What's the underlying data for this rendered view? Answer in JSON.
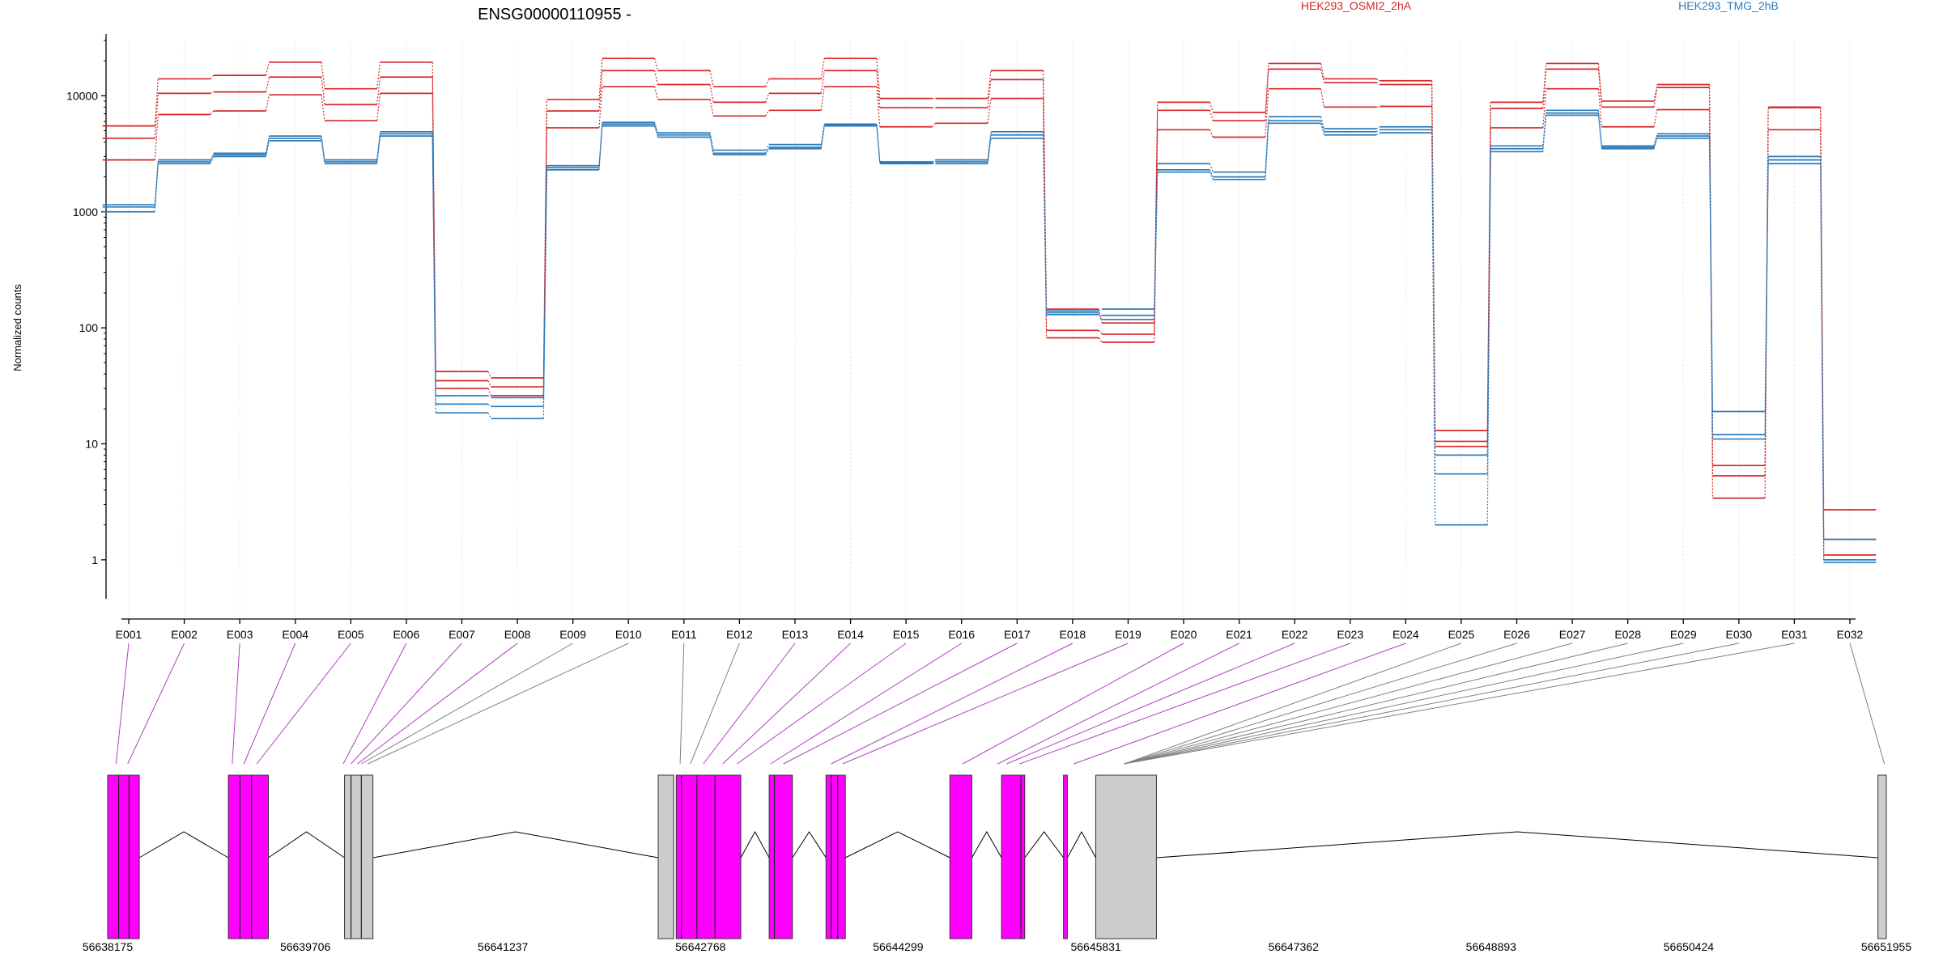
{
  "chart_data": {
    "type": "line",
    "title": "ENSG00000110955 -",
    "ylabel": "Normalized counts",
    "xlabel": "",
    "y_scale": "log",
    "ylim": [
      0.5,
      30000
    ],
    "y_ticks": [
      1,
      10,
      100,
      1000,
      10000
    ],
    "y_tick_labels": [
      "1",
      "10",
      "100",
      "1000",
      "10000"
    ],
    "grid": "vertical dotted at each exon",
    "legend_position": "top",
    "categories": [
      "E001",
      "E002",
      "E003",
      "E004",
      "E005",
      "E006",
      "E007",
      "E008",
      "E009",
      "E010",
      "E011",
      "E012",
      "E013",
      "E014",
      "E015",
      "E016",
      "E017",
      "E018",
      "E019",
      "E020",
      "E021",
      "E022",
      "E023",
      "E024",
      "E025",
      "E026",
      "E027",
      "E028",
      "E029",
      "E030",
      "E031",
      "E032"
    ],
    "groups": [
      {
        "name": "HEK293_OSMI2_2hA",
        "color": "#d62728",
        "series": [
          {
            "values": [
              5500,
              14000,
              15000,
              19500,
              11500,
              19500,
              42,
              37,
              9300,
              21000,
              16500,
              12000,
              14000,
              21000,
              9500,
              9500,
              16500,
              145,
              110,
              8800,
              7200,
              19000,
              14000,
              13500,
              13,
              8800,
              19000,
              9000,
              12500,
              6.5,
              8000,
              2.7
            ]
          },
          {
            "values": [
              4300,
              10500,
              10800,
              14500,
              8400,
              14500,
              35,
              31,
              7400,
              16500,
              12500,
              8800,
              10500,
              16500,
              7900,
              7900,
              13800,
              95,
              88,
              7500,
              6100,
              17000,
              13000,
              12500,
              10.5,
              7800,
              17000,
              8000,
              11800,
              5.3,
              5100,
              1.5
            ]
          },
          {
            "values": [
              2800,
              6900,
              7400,
              10200,
              6100,
              10500,
              30,
              26,
              5300,
              12000,
              9300,
              6700,
              7500,
              12000,
              5400,
              5800,
              9500,
              82,
              75,
              5100,
              4400,
              11500,
              8000,
              8100,
              9.5,
              5300,
              11500,
              5400,
              7600,
              3.4,
              7900,
              1.1
            ]
          }
        ]
      },
      {
        "name": "HEK293_TMG_2hB",
        "color": "#2b7bba",
        "series": [
          {
            "values": [
              1150,
              2800,
              3200,
              4500,
              2800,
              4900,
              26,
              25,
              2500,
              5900,
              4800,
              3400,
              3800,
              5700,
              2700,
              2800,
              4900,
              140,
              145,
              2600,
              2200,
              6600,
              5200,
              5400,
              8,
              3700,
              7500,
              3700,
              4700,
              19,
              3000,
              1.5
            ]
          },
          {
            "values": [
              1100,
              2700,
              3100,
              4300,
              2700,
              4700,
              22,
              21,
              2400,
              5700,
              4600,
              3200,
              3600,
              5600,
              2650,
              2700,
              4600,
              135,
              128,
              2300,
              2000,
              6100,
              4900,
              5100,
              5.5,
              3500,
              7100,
              3600,
              4500,
              12,
              2800,
              1.0
            ]
          },
          {
            "values": [
              1000,
              2600,
              3000,
              4100,
              2600,
              4500,
              18.5,
              16.5,
              2300,
              5500,
              4400,
              3100,
              3500,
              5500,
              2600,
              2600,
              4300,
              130,
              118,
              2200,
              1900,
              5800,
              4600,
              4800,
              2.0,
              3300,
              6800,
              3500,
              4300,
              11,
              2600,
              0.95
            ]
          }
        ]
      }
    ],
    "gene_model": {
      "x_ticks": [
        56638175,
        56639706,
        56641237,
        56642768,
        56644299,
        56645831,
        56647362,
        56648893,
        56650424,
        56651955
      ],
      "x_tick_labels": [
        "56638175",
        "56639706",
        "56641237",
        "56642768",
        "56644299",
        "56645831",
        "56647362",
        "56648893",
        "56650424",
        "56651955"
      ],
      "exon_color": "#ff00ff",
      "noncoding_color": "#cccccc",
      "blocks": [
        {
          "type": "exon",
          "start": 56638175,
          "end": 56638420
        },
        {
          "type": "exon",
          "start": 56639110,
          "end": 56639420
        },
        {
          "type": "noncoding",
          "start": 56640010,
          "end": 56640230
        },
        {
          "type": "noncoding",
          "start": 56642440,
          "end": 56642560
        },
        {
          "type": "exon",
          "start": 56642580,
          "end": 56643080
        },
        {
          "type": "exon",
          "start": 56643300,
          "end": 56643480
        },
        {
          "type": "exon",
          "start": 56643740,
          "end": 56643890
        },
        {
          "type": "exon",
          "start": 56644700,
          "end": 56644870
        },
        {
          "type": "exon",
          "start": 56645100,
          "end": 56645280
        },
        {
          "type": "exon",
          "start": 56645580,
          "end": 56645610
        },
        {
          "type": "noncoding",
          "start": 56645830,
          "end": 56646300
        },
        {
          "type": "noncoding",
          "start": 56651890,
          "end": 56651955
        }
      ],
      "boundaries": [
        56638260,
        56638340,
        56639200,
        56639290,
        56640060,
        56640140,
        56642620,
        56642740,
        56642880,
        56643340,
        56643780,
        56643830,
        56645250
      ],
      "exon_positions": [
        56638240,
        56638330,
        56639140,
        56639230,
        56639330,
        56640000,
        56640060,
        56640110,
        56640140,
        56640190,
        56642610,
        56642690,
        56642790,
        56642940,
        56643050,
        56643310,
        56643410,
        56643780,
        56643870,
        56644800,
        56645070,
        56645140,
        56645240,
        56645660,
        56646050,
        56646050,
        56646050,
        56646050,
        56646050,
        56646050,
        56646050,
        56651940
      ],
      "exon_link_kinds": [
        "exon",
        "exon",
        "exon",
        "exon",
        "exon",
        "exon",
        "exon",
        "exon",
        "noncoding",
        "noncoding",
        "noncoding",
        "noncoding",
        "exon",
        "exon",
        "exon",
        "exon",
        "exon",
        "exon",
        "exon",
        "exon",
        "exon",
        "exon",
        "exon",
        "exon",
        "noncoding",
        "noncoding",
        "noncoding",
        "noncoding",
        "noncoding",
        "noncoding",
        "noncoding",
        "noncoding"
      ]
    }
  }
}
